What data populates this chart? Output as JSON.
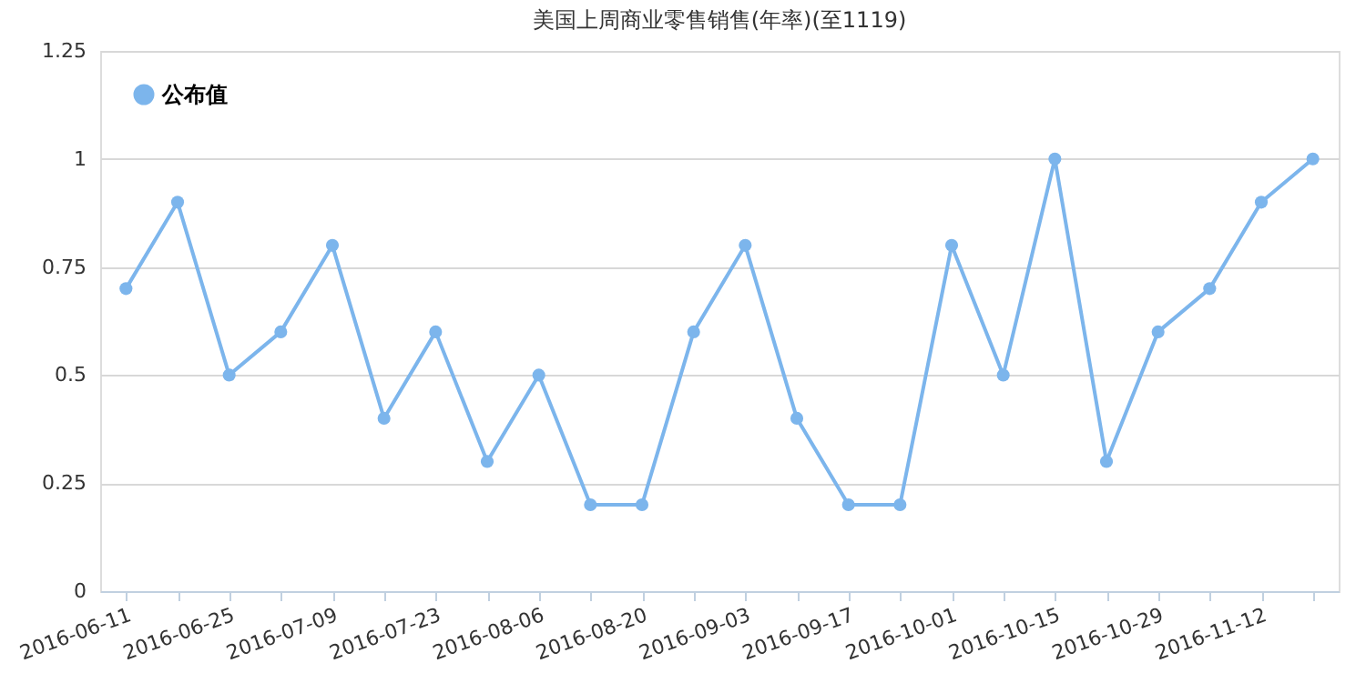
{
  "chart_data": {
    "type": "line",
    "title": "美国上周商业零售销售(年率)(至1119)",
    "categories": [
      "2016-06-11",
      null,
      "2016-06-25",
      null,
      "2016-07-09",
      null,
      "2016-07-23",
      null,
      "2016-08-06",
      null,
      "2016-08-20",
      null,
      "2016-09-03",
      null,
      "2016-09-17",
      null,
      "2016-10-01",
      null,
      "2016-10-15",
      null,
      "2016-10-29",
      null,
      "2016-11-12",
      null
    ],
    "series": [
      {
        "name": "公布值",
        "color": "#7cb5ec",
        "values": [
          0.7,
          0.9,
          0.5,
          0.6,
          0.8,
          0.4,
          0.6,
          0.3,
          0.5,
          0.2,
          0.2,
          0.6,
          0.8,
          0.4,
          0.2,
          0.2,
          0.8,
          0.5,
          1.0,
          0.3,
          0.6,
          0.7,
          0.9,
          1.0
        ]
      }
    ],
    "ylim": [
      0,
      1.25
    ],
    "yticks": [
      0,
      0.25,
      0.5,
      0.75,
      1,
      1.25
    ],
    "grid": "y",
    "legend": "top left",
    "marker": "circle",
    "line_style": "solid"
  }
}
